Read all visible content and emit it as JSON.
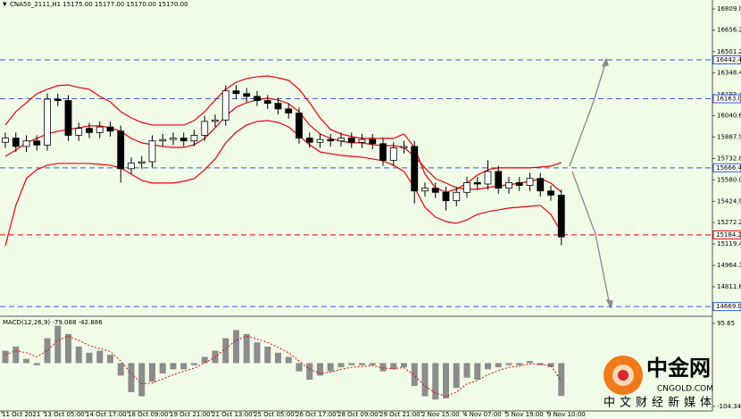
{
  "chart_data": [
    {
      "type": "candlestick",
      "title": "CNA50_2111,H1 15175.00 15177.00 15170.00 15170.00",
      "categories": [
        "11 Oct 2021",
        null,
        null,
        null,
        "13 Oct 05:00",
        null,
        null,
        null,
        "14 Oct 17:00",
        null,
        null,
        null,
        "18 Oct 09:00",
        null,
        null,
        null,
        "19 Oct 21:00",
        null,
        null,
        null,
        "21 Oct 13:00",
        null,
        null,
        null,
        "25 Oct 05:00",
        null,
        null,
        null,
        "26 Oct 17:00",
        null,
        null,
        null,
        "28 Oct 09:00",
        null,
        null,
        null,
        "29 Oct 21:00",
        null,
        null,
        null,
        "2 Nov 15:00",
        null,
        null,
        null,
        "4 Nov 07:00",
        null,
        null,
        null,
        "5 Nov 19:00",
        null,
        null,
        null,
        "9 Nov 10:00",
        null
      ],
      "open": [
        15850,
        15880,
        15820,
        15860,
        15830,
        16160,
        16150,
        15900,
        15950,
        15920,
        15960,
        15930,
        15660,
        15700,
        15710,
        15860,
        15870,
        15880,
        15860,
        15900,
        16000,
        16010,
        16220,
        16200,
        16180,
        16150,
        16130,
        16090,
        16060,
        15880,
        15850,
        15870,
        15860,
        15880,
        15850,
        15870,
        15840,
        15720,
        15810,
        15820,
        15500,
        15520,
        15490,
        15430,
        15490,
        15560,
        15550,
        15640,
        15520,
        15560,
        15540,
        15590,
        15500,
        15470
      ],
      "high": [
        15920,
        15920,
        15900,
        15900,
        16200,
        16200,
        16190,
        15990,
        15990,
        16000,
        16000,
        15970,
        15740,
        15750,
        15900,
        15910,
        15920,
        15920,
        15940,
        16040,
        16050,
        16260,
        16260,
        16240,
        16220,
        16190,
        16170,
        16130,
        16100,
        15920,
        15910,
        15910,
        15920,
        15920,
        15910,
        15910,
        15880,
        15850,
        15860,
        15860,
        15560,
        15560,
        15530,
        15530,
        15600,
        15600,
        15720,
        15680,
        15600,
        15600,
        15630,
        15630,
        15540,
        15510
      ],
      "low": [
        15810,
        15780,
        15780,
        15790,
        15790,
        16110,
        15860,
        15860,
        15880,
        15880,
        15890,
        15560,
        15620,
        15660,
        15670,
        15820,
        15830,
        15820,
        15820,
        15860,
        15960,
        15970,
        16160,
        16140,
        16110,
        16090,
        16050,
        16020,
        15840,
        15810,
        15810,
        15820,
        15820,
        15810,
        15810,
        15800,
        15680,
        15680,
        15770,
        15410,
        15460,
        15450,
        15360,
        15390,
        15450,
        15510,
        15510,
        15480,
        15480,
        15500,
        15500,
        15460,
        15430,
        15110
      ],
      "close": [
        15880,
        15820,
        15860,
        15830,
        16160,
        16150,
        15900,
        15950,
        15920,
        15960,
        15930,
        15660,
        15700,
        15710,
        15860,
        15870,
        15880,
        15860,
        15900,
        16000,
        16010,
        16220,
        16200,
        16180,
        16150,
        16130,
        16090,
        16060,
        15880,
        15850,
        15870,
        15860,
        15880,
        15850,
        15870,
        15840,
        15720,
        15810,
        15820,
        15500,
        15520,
        15490,
        15430,
        15490,
        15560,
        15550,
        15640,
        15520,
        15560,
        15540,
        15590,
        15500,
        15470,
        15170
      ],
      "up_color": "#ffffff",
      "down_color": "#000000",
      "series": [
        {
          "color": "#e8000b",
          "values": [
            15974,
            16070,
            16135,
            16199,
            16231,
            16257,
            16263,
            16244,
            16231,
            16180,
            16141,
            16070,
            16025,
            15993,
            15974,
            15974,
            15974,
            15974,
            16006,
            16070,
            16154,
            16231,
            16282,
            16308,
            16321,
            16327,
            16314,
            16295,
            16231,
            16135,
            16025,
            15942,
            15910,
            15891,
            15878,
            15878,
            15878,
            15878,
            15910,
            15813,
            15621,
            15524,
            15492,
            15512,
            15557,
            15614,
            15653,
            15666,
            15666,
            15666,
            15666,
            15672,
            15679,
            15704
          ]
        },
        {
          "color": "#e8000b",
          "values": [
            15749,
            15794,
            15846,
            15878,
            15910,
            15929,
            15942,
            15955,
            15968,
            15968,
            15955,
            15929,
            15878,
            15846,
            15833,
            15820,
            15813,
            15813,
            15833,
            15878,
            15955,
            16038,
            16102,
            16135,
            16154,
            16167,
            16154,
            16128,
            16070,
            15974,
            15910,
            15878,
            15858,
            15846,
            15846,
            15833,
            15826,
            15826,
            15813,
            15749,
            15666,
            15589,
            15557,
            15524,
            15512,
            15512,
            15524,
            15537,
            15544,
            15557,
            15569,
            15589,
            15557,
            15492
          ]
        },
        {
          "color": "#e8000b",
          "values": [
            15107,
            15396,
            15589,
            15653,
            15685,
            15698,
            15698,
            15698,
            15698,
            15691,
            15685,
            15666,
            15621,
            15576,
            15557,
            15557,
            15557,
            15569,
            15589,
            15653,
            15730,
            15846,
            15923,
            15974,
            16000,
            16006,
            15993,
            15961,
            15897,
            15833,
            15781,
            15768,
            15756,
            15749,
            15743,
            15730,
            15717,
            15685,
            15640,
            15524,
            15383,
            15312,
            15280,
            15267,
            15293,
            15332,
            15351,
            15364,
            15377,
            15383,
            15390,
            15396,
            15332,
            15203
          ]
        }
      ],
      "ylim": [
        14612,
        16873
      ],
      "yticks": [
        {
          "value": 16809,
          "label": "16809.00"
        },
        16656.25,
        16501.25,
        {
          "value": 16348.4,
          "label": "16348.40"
        },
        {
          "value": 16193.4,
          "label": "16193.40"
        },
        {
          "value": 16040.65,
          "label": "16040.65"
        },
        {
          "value": 15887.9,
          "label": "15887.90"
        },
        {
          "value": 15732.8,
          "label": "15732.80"
        },
        {
          "value": 15580.05,
          "label": "15580.05"
        },
        15424.95,
        {
          "value": 15272.2,
          "label": "15272.20"
        },
        15119.45,
        14964.35,
        {
          "value": 14811.6,
          "label": "14811.60"
        }
      ],
      "levels": [
        {
          "value": 16442.48,
          "label": "16442.48",
          "color": "#3a5bd9"
        },
        {
          "value": 16163,
          "label": "16163.00",
          "color": "#3a5bd9"
        },
        {
          "value": 15666.41,
          "label": "15666.41",
          "color": "#3a5bd9"
        },
        {
          "value": 15184.26,
          "label": "15184.26",
          "color": "#e8000b"
        },
        {
          "value": 14669.06,
          "label": "14669.06",
          "color": "#3a5bd9"
        }
      ]
    },
    {
      "type": "macd",
      "title": "MACD(12,26,9) -79.088 -42.886",
      "histogram": {
        "color": "#8c8c8c",
        "values": [
          30,
          40,
          10,
          -5,
          60,
          90,
          70,
          40,
          25,
          30,
          20,
          -30,
          -70,
          -80,
          -45,
          -25,
          -15,
          -15,
          -5,
          15,
          30,
          60,
          80,
          70,
          50,
          40,
          25,
          15,
          -20,
          -40,
          -30,
          -20,
          -10,
          -5,
          -5,
          -5,
          -20,
          -15,
          -10,
          -55,
          -80,
          -88,
          -85,
          -60,
          -35,
          -40,
          -15,
          -10,
          -5,
          -5,
          5,
          -5,
          -10,
          -79.088
        ]
      },
      "signal": {
        "color": "#e8000b",
        "values": [
          20,
          30,
          25,
          15,
          30,
          55,
          65,
          55,
          42,
          35,
          28,
          5,
          -25,
          -50,
          -48,
          -38,
          -28,
          -20,
          -12,
          0,
          15,
          35,
          55,
          65,
          58,
          50,
          38,
          25,
          5,
          -15,
          -25,
          -22,
          -15,
          -10,
          -8,
          -6,
          -12,
          -13,
          -11,
          -30,
          -55,
          -72,
          -80,
          -70,
          -50,
          -42,
          -28,
          -18,
          -10,
          -7,
          -2,
          -3,
          -6,
          -42.886
        ]
      },
      "ylim": [
        -117.5,
        108.6
      ],
      "yticks": [
        95.65,
        {
          "value": -104.342,
          "label": "-104.342"
        }
      ]
    }
  ],
  "watermark": {
    "brand": "中金网",
    "site": "CNGOLD.COM",
    "slogan": "中文财经新媒体"
  }
}
